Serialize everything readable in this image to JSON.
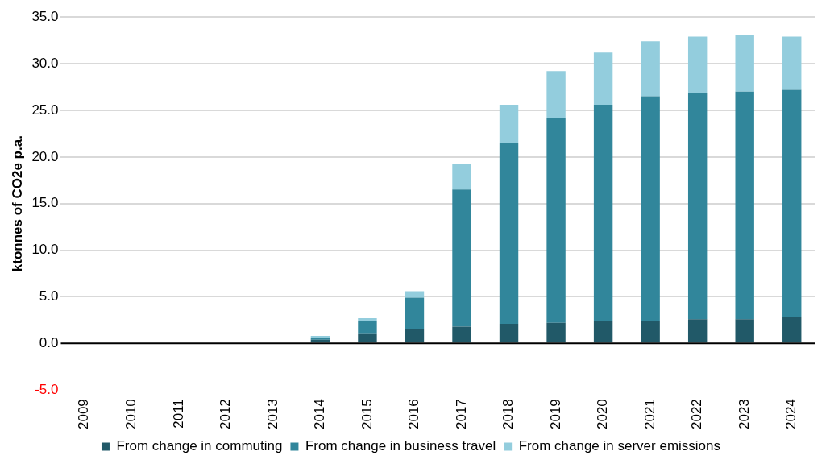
{
  "chart_data": {
    "type": "bar",
    "stacked": true,
    "ylabel": "ktonnes of CO2e p.a.",
    "categories": [
      "2009",
      "2010",
      "2011",
      "2012",
      "2013",
      "2014",
      "2015",
      "2016",
      "2017",
      "2018",
      "2019",
      "2020",
      "2021",
      "2022",
      "2023",
      "2024"
    ],
    "series": [
      {
        "name": "From change in commuting",
        "color": "#215968",
        "values": [
          0,
          0,
          0,
          0,
          0.1,
          0.4,
          1.0,
          1.5,
          1.8,
          2.1,
          2.2,
          2.4,
          2.4,
          2.6,
          2.6,
          2.8
        ]
      },
      {
        "name": "From change in business travel",
        "color": "#31869b",
        "values": [
          0,
          0,
          0,
          0,
          0,
          0.2,
          1.4,
          3.4,
          14.7,
          19.4,
          22.0,
          23.2,
          24.1,
          24.3,
          24.4,
          24.4
        ]
      },
      {
        "name": "From change in server emissions",
        "color": "#93cddd",
        "values": [
          0,
          0,
          0,
          0,
          0,
          0.2,
          0.3,
          0.7,
          2.8,
          4.1,
          5.0,
          5.6,
          5.9,
          6.0,
          6.1,
          5.7
        ]
      }
    ],
    "ylim": [
      -5,
      35
    ],
    "yticks": [
      {
        "value": -5,
        "label": "-5.0"
      },
      {
        "value": 0,
        "label": "0.0"
      },
      {
        "value": 5,
        "label": "5.0"
      },
      {
        "value": 10,
        "label": "10.0"
      },
      {
        "value": 15,
        "label": "15.0"
      },
      {
        "value": 20,
        "label": "20.0"
      },
      {
        "value": 25,
        "label": "25.0"
      },
      {
        "value": 30,
        "label": "30.0"
      },
      {
        "value": 35,
        "label": "35.0"
      }
    ],
    "grid": "y",
    "legend": "bottom"
  }
}
